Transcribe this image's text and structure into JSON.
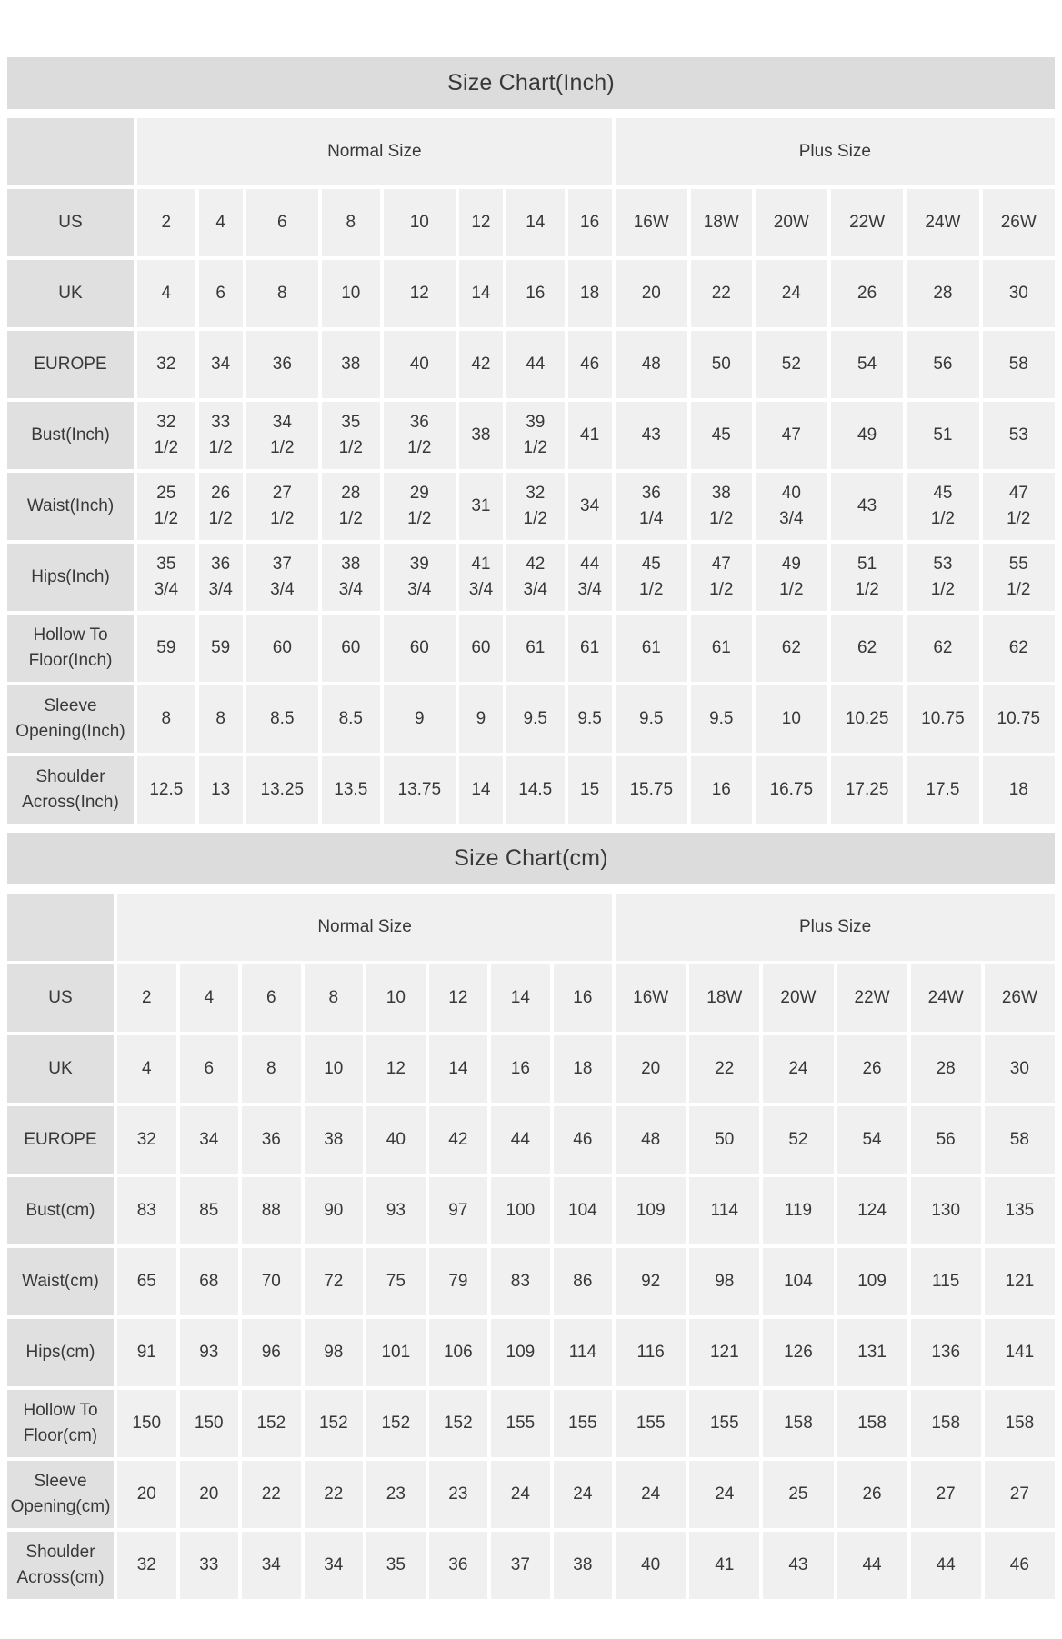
{
  "colors": {
    "page_bg": "#ffffff",
    "title_bar_bg": "#dcdcdc",
    "header_cell_bg": "#e0e0e0",
    "data_cell_bg": "#f0f0f0",
    "text": "#383838"
  },
  "page": {
    "charts": [
      {
        "id": "inch",
        "title": "Size Chart(Inch)",
        "group_headers": [
          {
            "label": "Normal Size",
            "span": 8
          },
          {
            "label": "Plus Size",
            "span": 6
          }
        ],
        "rows": [
          {
            "label": "US",
            "values": [
              "2",
              "4",
              "6",
              "8",
              "10",
              "12",
              "14",
              "16",
              "16W",
              "18W",
              "20W",
              "22W",
              "24W",
              "26W"
            ]
          },
          {
            "label": "UK",
            "values": [
              "4",
              "6",
              "8",
              "10",
              "12",
              "14",
              "16",
              "18",
              "20",
              "22",
              "24",
              "26",
              "28",
              "30"
            ]
          },
          {
            "label": "EUROPE",
            "values": [
              "32",
              "34",
              "36",
              "38",
              "40",
              "42",
              "44",
              "46",
              "48",
              "50",
              "52",
              "54",
              "56",
              "58"
            ]
          },
          {
            "label": "Bust(Inch)",
            "values": [
              "32\n1/2",
              "33\n1/2",
              "34\n1/2",
              "35\n1/2",
              "36\n1/2",
              "38",
              "39\n1/2",
              "41",
              "43",
              "45",
              "47",
              "49",
              "51",
              "53"
            ]
          },
          {
            "label": "Waist(Inch)",
            "values": [
              "25\n1/2",
              "26\n1/2",
              "27\n1/2",
              "28\n1/2",
              "29\n1/2",
              "31",
              "32\n1/2",
              "34",
              "36\n1/4",
              "38\n1/2",
              "40\n3/4",
              "43",
              "45\n1/2",
              "47\n1/2"
            ]
          },
          {
            "label": "Hips(Inch)",
            "values": [
              "35\n3/4",
              "36\n3/4",
              "37\n3/4",
              "38\n3/4",
              "39\n3/4",
              "41\n3/4",
              "42\n3/4",
              "44\n3/4",
              "45\n1/2",
              "47\n1/2",
              "49\n1/2",
              "51\n1/2",
              "53\n1/2",
              "55\n1/2"
            ]
          },
          {
            "label": "Hollow To\nFloor(Inch)",
            "values": [
              "59",
              "59",
              "60",
              "60",
              "60",
              "60",
              "61",
              "61",
              "61",
              "61",
              "62",
              "62",
              "62",
              "62"
            ]
          },
          {
            "label": "Sleeve\nOpening(Inch)",
            "values": [
              "8",
              "8",
              "8.5",
              "8.5",
              "9",
              "9",
              "9.5",
              "9.5",
              "9.5",
              "9.5",
              "10",
              "10.25",
              "10.75",
              "10.75"
            ]
          },
          {
            "label": "Shoulder\nAcross(Inch)",
            "values": [
              "12.5",
              "13",
              "13.25",
              "13.5",
              "13.75",
              "14",
              "14.5",
              "15",
              "15.75",
              "16",
              "16.75",
              "17.25",
              "17.5",
              "18"
            ]
          }
        ]
      },
      {
        "id": "cm",
        "title": "Size Chart(cm)",
        "group_headers": [
          {
            "label": "Normal Size",
            "span": 8
          },
          {
            "label": "Plus Size",
            "span": 6
          }
        ],
        "rows": [
          {
            "label": "US",
            "values": [
              "2",
              "4",
              "6",
              "8",
              "10",
              "12",
              "14",
              "16",
              "16W",
              "18W",
              "20W",
              "22W",
              "24W",
              "26W"
            ]
          },
          {
            "label": "UK",
            "values": [
              "4",
              "6",
              "8",
              "10",
              "12",
              "14",
              "16",
              "18",
              "20",
              "22",
              "24",
              "26",
              "28",
              "30"
            ]
          },
          {
            "label": "EUROPE",
            "values": [
              "32",
              "34",
              "36",
              "38",
              "40",
              "42",
              "44",
              "46",
              "48",
              "50",
              "52",
              "54",
              "56",
              "58"
            ]
          },
          {
            "label": "Bust(cm)",
            "values": [
              "83",
              "85",
              "88",
              "90",
              "93",
              "97",
              "100",
              "104",
              "109",
              "114",
              "119",
              "124",
              "130",
              "135"
            ]
          },
          {
            "label": "Waist(cm)",
            "values": [
              "65",
              "68",
              "70",
              "72",
              "75",
              "79",
              "83",
              "86",
              "92",
              "98",
              "104",
              "109",
              "115",
              "121"
            ]
          },
          {
            "label": "Hips(cm)",
            "values": [
              "91",
              "93",
              "96",
              "98",
              "101",
              "106",
              "109",
              "114",
              "116",
              "121",
              "126",
              "131",
              "136",
              "141"
            ]
          },
          {
            "label": "Hollow To\nFloor(cm)",
            "values": [
              "150",
              "150",
              "152",
              "152",
              "152",
              "152",
              "155",
              "155",
              "155",
              "155",
              "158",
              "158",
              "158",
              "158"
            ]
          },
          {
            "label": "Sleeve\nOpening(cm)",
            "values": [
              "20",
              "20",
              "22",
              "22",
              "23",
              "23",
              "24",
              "24",
              "24",
              "24",
              "25",
              "26",
              "27",
              "27"
            ]
          },
          {
            "label": "Shoulder\nAcross(cm)",
            "values": [
              "32",
              "33",
              "34",
              "34",
              "35",
              "36",
              "37",
              "38",
              "40",
              "41",
              "43",
              "44",
              "44",
              "46"
            ]
          }
        ]
      }
    ]
  }
}
